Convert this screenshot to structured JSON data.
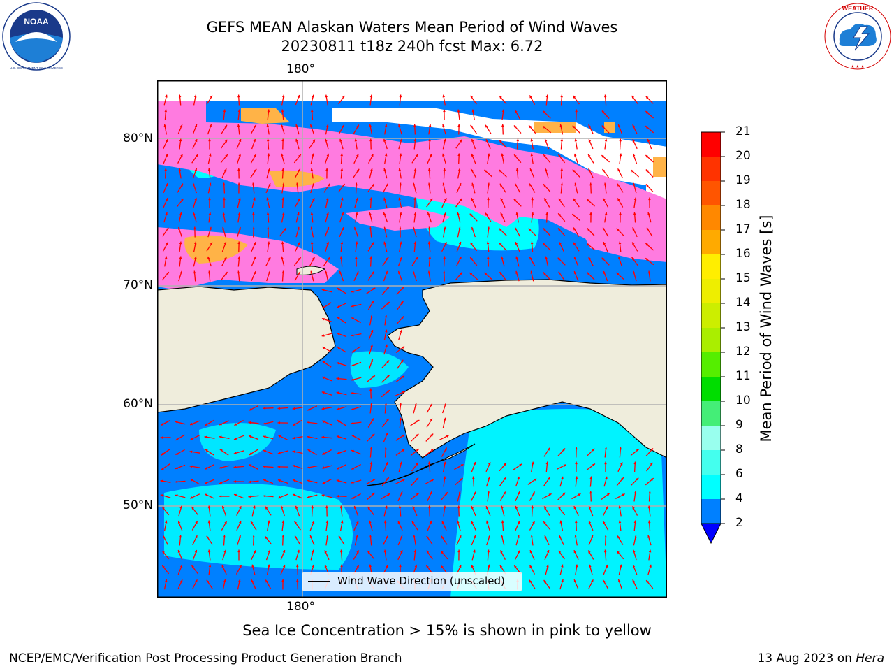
{
  "header": {
    "title_line1": "GEFS MEAN Alaskan Waters Mean Period of Wind Waves",
    "title_line2": "20230811 t18z 240h fcst   Max: 6.72"
  },
  "logos": {
    "left": {
      "name": "NOAA",
      "ring_text": "NATIONAL OCEANIC AND ATMOSPHERIC ADMINISTRATION · U.S. DEPARTMENT OF COMMERCE"
    },
    "right": {
      "name": "NATIONAL WEATHER SERVICE"
    }
  },
  "map": {
    "top_lon_label": "180°",
    "bottom_lon_label": "180°",
    "lat_labels": [
      "80°N",
      "70°N",
      "60°N",
      "50°N"
    ],
    "legend_text": "Wind Wave Direction (unscaled)",
    "colors": {
      "land": "#efeddc",
      "arrow": "#ff0000",
      "grid": "#b0b0b0",
      "ice_pink": "#ff7be0",
      "ice_orange": "#ffb347"
    }
  },
  "chart_data": {
    "type": "heatmap",
    "title": "GEFS MEAN Alaskan Waters Mean Period of Wind Waves",
    "subtitle": "20230811 t18z 240h fcst   Max: 6.72",
    "colorbar": {
      "label": "Mean Period of Wind Waves [s]",
      "ticks": [
        "2",
        "4",
        "6",
        "8",
        "9",
        "10",
        "11",
        "12",
        "13",
        "14",
        "15",
        "16",
        "17",
        "18",
        "19",
        "20",
        "21"
      ],
      "bins": [
        {
          "range": [
            2,
            4
          ],
          "color": "#0080ff"
        },
        {
          "range": [
            4,
            6
          ],
          "color": "#00ffff"
        },
        {
          "range": [
            6,
            8
          ],
          "color": "#44ffee"
        },
        {
          "range": [
            8,
            9
          ],
          "color": "#99ffee"
        },
        {
          "range": [
            9,
            10
          ],
          "color": "#44ee77"
        },
        {
          "range": [
            10,
            11
          ],
          "color": "#00dd00"
        },
        {
          "range": [
            11,
            12
          ],
          "color": "#55ee00"
        },
        {
          "range": [
            12,
            13
          ],
          "color": "#aaee00"
        },
        {
          "range": [
            13,
            14
          ],
          "color": "#ccee00"
        },
        {
          "range": [
            14,
            15
          ],
          "color": "#eeee00"
        },
        {
          "range": [
            15,
            16
          ],
          "color": "#ffee00"
        },
        {
          "range": [
            16,
            17
          ],
          "color": "#ffaa00"
        },
        {
          "range": [
            17,
            18
          ],
          "color": "#ff8800"
        },
        {
          "range": [
            18,
            19
          ],
          "color": "#ff5500"
        },
        {
          "range": [
            19,
            20
          ],
          "color": "#ff3300"
        },
        {
          "range": [
            20,
            21
          ],
          "color": "#ff0000"
        }
      ],
      "under_color": "#0000ff",
      "extend": "min"
    },
    "max_value": 6.72
  },
  "footer": {
    "subtitle": "Sea Ice Concentration > 15% is shown in pink to yellow",
    "left": "NCEP/EMC/Verification Post Processing Product Generation Branch",
    "right_date": "13 Aug 2023 on",
    "right_host": "Hera"
  }
}
